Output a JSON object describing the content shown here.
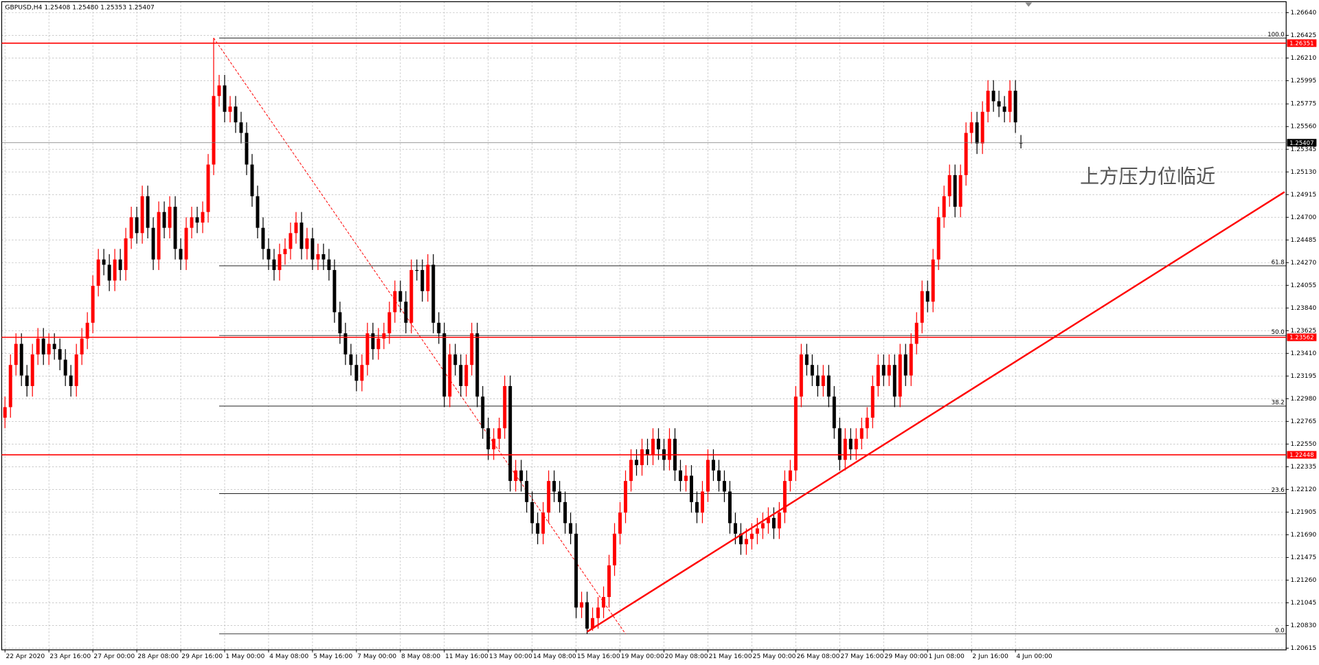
{
  "chart_data": {
    "type": "candlestick",
    "title": "GBPUSD,H4  1.25408 1.25480 1.25353 1.25407",
    "annotation": "上方压力位临近",
    "bullish_color": "#ff0000",
    "bearish_color": "#000000",
    "grid": true,
    "xlim": [
      -0.6,
      233.3
    ],
    "ylim": [
      1.20599,
      1.26744
    ],
    "xticks": [
      {
        "value": 0,
        "label": "22 Apr 2020"
      },
      {
        "value": 8,
        "label": "23 Apr 16:00"
      },
      {
        "value": 16,
        "label": "27 Apr 00:00"
      },
      {
        "value": 24,
        "label": "28 Apr 08:00"
      },
      {
        "value": 32,
        "label": "29 Apr 16:00"
      },
      {
        "value": 40,
        "label": "1 May 00:00"
      },
      {
        "value": 48,
        "label": "4 May 08:00"
      },
      {
        "value": 56,
        "label": "5 May 16:00"
      },
      {
        "value": 64,
        "label": "7 May 00:00"
      },
      {
        "value": 72,
        "label": "8 May 08:00"
      },
      {
        "value": 80,
        "label": "11 May 16:00"
      },
      {
        "value": 88,
        "label": "13 May 00:00"
      },
      {
        "value": 96,
        "label": "14 May 08:00"
      },
      {
        "value": 104,
        "label": "15 May 16:00"
      },
      {
        "value": 112,
        "label": "19 May 00:00"
      },
      {
        "value": 120,
        "label": "20 May 08:00"
      },
      {
        "value": 128,
        "label": "21 May 16:00"
      },
      {
        "value": 136,
        "label": "25 May 00:00"
      },
      {
        "value": 144,
        "label": "26 May 08:00"
      },
      {
        "value": 152,
        "label": "27 May 16:00"
      },
      {
        "value": 160,
        "label": "29 May 00:00"
      },
      {
        "value": 168,
        "label": "1 Jun 08:00"
      },
      {
        "value": 176,
        "label": "2 Jun 16:00"
      },
      {
        "value": 184,
        "label": "4 Jun 00:00"
      }
    ],
    "yticks": [
      {
        "value": 1.2664,
        "label": "1.26640"
      },
      1.26425,
      {
        "value": 1.2621,
        "label": "1.26210"
      },
      1.25995,
      1.25775,
      {
        "value": 1.2556,
        "label": "1.25560"
      },
      1.25345,
      {
        "value": 1.2513,
        "label": "1.25130"
      },
      1.24915,
      {
        "value": 1.247,
        "label": "1.24700"
      },
      1.24485,
      {
        "value": 1.2427,
        "label": "1.24270"
      },
      1.24055,
      {
        "value": 1.2384,
        "label": "1.23840"
      },
      1.23625,
      {
        "value": 1.2341,
        "label": "1.23410"
      },
      1.23195,
      {
        "value": 1.2298,
        "label": "1.22980"
      },
      1.22765,
      {
        "value": 1.2255,
        "label": "1.22550"
      },
      1.22335,
      {
        "value": 1.2212,
        "label": "1.22120"
      },
      1.21905,
      {
        "value": 1.2169,
        "label": "1.21690"
      },
      1.21475,
      {
        "value": 1.2126,
        "label": "1.21260"
      },
      1.21045,
      {
        "value": 1.2083,
        "label": "1.20830"
      },
      1.20615
    ],
    "levels": [
      1.26351,
      1.23562,
      1.22448
    ],
    "level_color": "#ff0000",
    "last_price": 1.25407,
    "fibo": {
      "start_x": 39,
      "color": "#000000",
      "levels": [
        {
          "value": 1.264,
          "label": "100.0"
        },
        {
          "value": 1.2424,
          "label": "61.8"
        },
        {
          "value": 1.2358,
          "label": "50.0"
        },
        {
          "value": 1.2291,
          "label": "38.2"
        },
        {
          "value": 1.2208,
          "label": "23.6"
        },
        {
          "value": 1.2075,
          "label": "0.0"
        }
      ],
      "line": {
        "x": [
          38,
          113
        ],
        "y": [
          1.264,
          1.2075
        ]
      }
    },
    "trendline": {
      "x": [
        106,
        233
      ],
      "y": [
        1.2077,
        1.2494
      ],
      "color": "#ff0000"
    },
    "open": [
      1.228,
      1.229,
      1.233,
      1.235,
      1.232,
      1.231,
      1.234,
      1.2355,
      1.234,
      1.235,
      1.2345,
      1.2335,
      1.232,
      1.231,
      1.234,
      1.2355,
      1.237,
      1.2405,
      1.243,
      1.2425,
      1.241,
      1.243,
      1.242,
      1.245,
      1.247,
      1.2455,
      1.249,
      1.246,
      1.243,
      1.2475,
      1.246,
      1.248,
      1.244,
      1.243,
      1.246,
      1.247,
      1.2465,
      1.2475,
      1.252,
      1.2585,
      1.2595,
      1.257,
      1.2575,
      1.256,
      1.255,
      1.252,
      1.249,
      1.246,
      1.244,
      1.243,
      1.242,
      1.2435,
      1.244,
      1.2455,
      1.2465,
      1.244,
      1.245,
      1.243,
      1.2435,
      1.243,
      1.242,
      1.238,
      1.236,
      1.234,
      1.233,
      1.2315,
      1.233,
      1.236,
      1.2345,
      1.2355,
      1.236,
      1.238,
      1.24,
      1.239,
      1.237,
      1.242,
      1.242,
      1.24,
      1.2425,
      1.237,
      1.236,
      1.23,
      1.234,
      1.233,
      1.231,
      1.233,
      1.236,
      1.23,
      1.227,
      1.225,
      1.226,
      1.227,
      1.231,
      1.222,
      1.223,
      1.222,
      1.22,
      1.218,
      1.217,
      1.219,
      1.222,
      1.221,
      1.22,
      1.218,
      1.217,
      1.21,
      1.2105,
      1.208,
      1.209,
      1.21,
      1.211,
      1.214,
      1.217,
      1.219,
      1.222,
      1.224,
      1.2235,
      1.225,
      1.2245,
      1.226,
      1.225,
      1.224,
      1.226,
      1.223,
      1.222,
      1.2225,
      1.22,
      1.219,
      1.221,
      1.224,
      1.223,
      1.222,
      1.221,
      1.218,
      1.217,
      1.216,
      1.2165,
      1.217,
      1.2175,
      1.218,
      1.2185,
      1.2175,
      1.219,
      1.222,
      1.223,
      1.23,
      1.234,
      1.233,
      1.232,
      1.231,
      1.232,
      1.23,
      1.227,
      1.224,
      1.226,
      1.225,
      1.226,
      1.227,
      1.228,
      1.231,
      1.233,
      1.232,
      1.233,
      1.23,
      1.234,
      1.232,
      1.235,
      1.237,
      1.24,
      1.239,
      1.243,
      1.247,
      1.249,
      1.251,
      1.248,
      1.251,
      1.255,
      1.256,
      1.254,
      1.257,
      1.259,
      1.258,
      1.2575,
      1.257,
      1.259,
      1.25408
    ],
    "high": [
      1.23,
      1.234,
      1.236,
      1.236,
      1.233,
      1.235,
      1.2365,
      1.2365,
      1.236,
      1.236,
      1.2355,
      1.2345,
      1.233,
      1.235,
      1.2365,
      1.238,
      1.2415,
      1.244,
      1.244,
      1.2435,
      1.244,
      1.244,
      1.246,
      1.248,
      1.248,
      1.25,
      1.25,
      1.247,
      1.2485,
      1.2485,
      1.249,
      1.249,
      1.245,
      1.247,
      1.248,
      1.248,
      1.2485,
      1.253,
      1.264,
      1.2605,
      1.2605,
      1.2585,
      1.2585,
      1.257,
      1.256,
      1.253,
      1.25,
      1.247,
      1.245,
      1.244,
      1.2445,
      1.245,
      1.2465,
      1.2475,
      1.2475,
      1.246,
      1.246,
      1.2445,
      1.2445,
      1.244,
      1.243,
      1.239,
      1.237,
      1.235,
      1.234,
      1.234,
      1.237,
      1.237,
      1.2365,
      1.237,
      1.239,
      1.241,
      1.241,
      1.24,
      1.243,
      1.243,
      1.243,
      1.2435,
      1.2435,
      1.238,
      1.237,
      1.235,
      1.235,
      1.234,
      1.234,
      1.237,
      1.237,
      1.231,
      1.228,
      1.227,
      1.228,
      1.232,
      1.232,
      1.224,
      1.224,
      1.223,
      1.221,
      1.219,
      1.22,
      1.223,
      1.223,
      1.222,
      1.221,
      1.219,
      1.218,
      1.2115,
      1.2115,
      1.21,
      1.211,
      1.212,
      1.215,
      1.218,
      1.22,
      1.223,
      1.225,
      1.225,
      1.226,
      1.226,
      1.227,
      1.227,
      1.226,
      1.227,
      1.227,
      1.224,
      1.2235,
      1.2235,
      1.221,
      1.222,
      1.225,
      1.225,
      1.224,
      1.223,
      1.222,
      1.219,
      1.218,
      1.2175,
      1.218,
      1.2185,
      1.219,
      1.2195,
      1.2195,
      1.22,
      1.223,
      1.224,
      1.231,
      1.235,
      1.235,
      1.234,
      1.233,
      1.233,
      1.233,
      1.231,
      1.228,
      1.227,
      1.227,
      1.227,
      1.228,
      1.229,
      1.232,
      1.234,
      1.234,
      1.234,
      1.234,
      1.235,
      1.235,
      1.236,
      1.238,
      1.241,
      1.241,
      1.244,
      1.248,
      1.25,
      1.252,
      1.252,
      1.252,
      1.256,
      1.257,
      1.257,
      1.258,
      1.26,
      1.26,
      1.259,
      1.2585,
      1.26,
      1.26,
      1.2548
    ],
    "low": [
      1.227,
      1.228,
      1.232,
      1.231,
      1.23,
      1.23,
      1.233,
      1.233,
      1.233,
      1.2335,
      1.2325,
      1.231,
      1.23,
      1.23,
      1.233,
      1.2345,
      1.236,
      1.2395,
      1.2415,
      1.24,
      1.24,
      1.241,
      1.241,
      1.244,
      1.2445,
      1.2445,
      1.245,
      1.242,
      1.242,
      1.245,
      1.245,
      1.243,
      1.242,
      1.242,
      1.245,
      1.2455,
      1.2455,
      1.2465,
      1.251,
      1.2575,
      1.256,
      1.256,
      1.255,
      1.254,
      1.251,
      1.248,
      1.245,
      1.243,
      1.242,
      1.241,
      1.241,
      1.2425,
      1.243,
      1.2445,
      1.243,
      1.243,
      1.242,
      1.242,
      1.242,
      1.241,
      1.237,
      1.235,
      1.233,
      1.232,
      1.2305,
      1.2305,
      1.232,
      1.2335,
      1.2335,
      1.2345,
      1.235,
      1.237,
      1.238,
      1.236,
      1.236,
      1.241,
      1.239,
      1.239,
      1.236,
      1.235,
      1.229,
      1.229,
      1.232,
      1.23,
      1.23,
      1.232,
      1.229,
      1.226,
      1.224,
      1.224,
      1.225,
      1.226,
      1.221,
      1.221,
      1.221,
      1.219,
      1.217,
      1.216,
      1.216,
      1.218,
      1.22,
      1.219,
      1.217,
      1.216,
      1.209,
      1.209,
      1.2075,
      1.2078,
      1.208,
      1.209,
      1.21,
      1.213,
      1.216,
      1.218,
      1.221,
      1.2225,
      1.2225,
      1.2235,
      1.2235,
      1.224,
      1.223,
      1.223,
      1.222,
      1.221,
      1.221,
      1.219,
      1.218,
      1.218,
      1.22,
      1.222,
      1.221,
      1.22,
      1.217,
      1.216,
      1.215,
      1.215,
      1.2155,
      1.216,
      1.2165,
      1.217,
      1.2165,
      1.2165,
      1.218,
      1.221,
      1.222,
      1.229,
      1.232,
      1.231,
      1.23,
      1.23,
      1.229,
      1.226,
      1.223,
      1.223,
      1.224,
      1.224,
      1.225,
      1.226,
      1.227,
      1.23,
      1.231,
      1.231,
      1.229,
      1.229,
      1.231,
      1.231,
      1.234,
      1.236,
      1.238,
      1.238,
      1.242,
      1.246,
      1.248,
      1.247,
      1.247,
      1.25,
      1.254,
      1.253,
      1.253,
      1.256,
      1.257,
      1.2565,
      1.256,
      1.256,
      1.255,
      1.25353
    ],
    "close": [
      1.229,
      1.233,
      1.235,
      1.232,
      1.231,
      1.234,
      1.2355,
      1.234,
      1.235,
      1.2345,
      1.2335,
      1.232,
      1.231,
      1.234,
      1.2355,
      1.237,
      1.2405,
      1.243,
      1.2425,
      1.241,
      1.243,
      1.242,
      1.245,
      1.247,
      1.2455,
      1.249,
      1.246,
      1.243,
      1.2475,
      1.246,
      1.248,
      1.244,
      1.243,
      1.246,
      1.247,
      1.2465,
      1.2475,
      1.252,
      1.2585,
      1.2595,
      1.257,
      1.2575,
      1.256,
      1.255,
      1.252,
      1.249,
      1.246,
      1.244,
      1.243,
      1.242,
      1.2435,
      1.244,
      1.2455,
      1.2465,
      1.244,
      1.245,
      1.243,
      1.2435,
      1.243,
      1.242,
      1.238,
      1.236,
      1.234,
      1.233,
      1.2315,
      1.233,
      1.236,
      1.2345,
      1.2355,
      1.236,
      1.238,
      1.24,
      1.239,
      1.237,
      1.242,
      1.242,
      1.24,
      1.2425,
      1.237,
      1.236,
      1.23,
      1.234,
      1.233,
      1.231,
      1.233,
      1.236,
      1.23,
      1.227,
      1.225,
      1.226,
      1.227,
      1.231,
      1.222,
      1.223,
      1.222,
      1.22,
      1.218,
      1.217,
      1.219,
      1.222,
      1.221,
      1.22,
      1.218,
      1.217,
      1.21,
      1.2105,
      1.208,
      1.209,
      1.21,
      1.211,
      1.214,
      1.217,
      1.219,
      1.222,
      1.224,
      1.2235,
      1.225,
      1.2245,
      1.226,
      1.225,
      1.224,
      1.226,
      1.223,
      1.222,
      1.2225,
      1.22,
      1.219,
      1.221,
      1.224,
      1.223,
      1.222,
      1.221,
      1.218,
      1.217,
      1.216,
      1.2165,
      1.217,
      1.2175,
      1.218,
      1.2185,
      1.2175,
      1.219,
      1.222,
      1.223,
      1.23,
      1.234,
      1.233,
      1.232,
      1.231,
      1.232,
      1.23,
      1.227,
      1.224,
      1.226,
      1.225,
      1.226,
      1.227,
      1.228,
      1.231,
      1.233,
      1.232,
      1.233,
      1.23,
      1.234,
      1.232,
      1.235,
      1.237,
      1.24,
      1.239,
      1.243,
      1.247,
      1.249,
      1.251,
      1.248,
      1.251,
      1.255,
      1.256,
      1.254,
      1.257,
      1.259,
      1.258,
      1.2575,
      1.257,
      1.259,
      1.256,
      1.25407
    ]
  }
}
